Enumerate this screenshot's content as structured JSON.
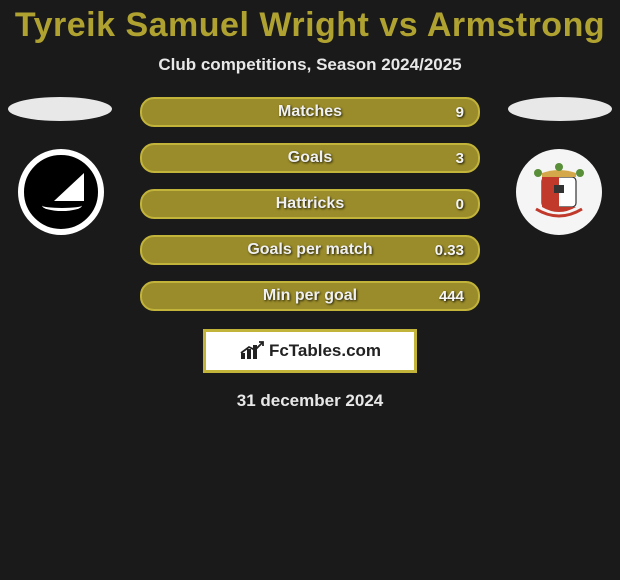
{
  "title_color": "#b0a231",
  "title": "Tyreik Samuel Wright vs Armstrong",
  "subtitle": "Club competitions, Season 2024/2025",
  "date": "31 december 2024",
  "oval_left_color": "#e8e8e8",
  "oval_right_color": "#e8e8e8",
  "bars": {
    "fill_color": "#9a8c2a",
    "border_color": "#c2b33a",
    "items": [
      {
        "label": "Matches",
        "value": "9"
      },
      {
        "label": "Goals",
        "value": "3"
      },
      {
        "label": "Hattricks",
        "value": "0"
      },
      {
        "label": "Goals per match",
        "value": "0.33"
      },
      {
        "label": "Min per goal",
        "value": "444"
      }
    ]
  },
  "brand": {
    "border_color": "#c2b33a",
    "text": "FcTables.com"
  },
  "crest_right_colors": {
    "shield_top": "#d4a84a",
    "shield_left": "#c0392b",
    "shield_right": "#ffffff",
    "ship": "#333333"
  }
}
